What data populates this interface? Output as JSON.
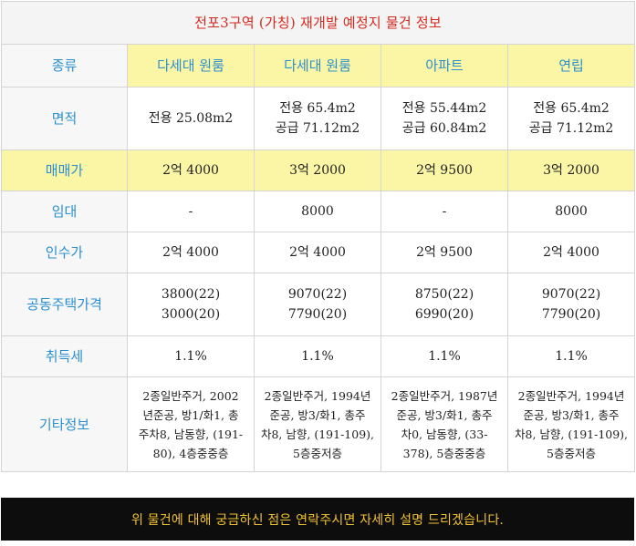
{
  "title": "전포3구역 (가칭) 재개발 예정지 물건 정보",
  "row_labels": {
    "type": "종류",
    "area": "면적",
    "price": "매매가",
    "lease": "임대",
    "acquisition": "인수가",
    "public_price": "공동주택가격",
    "tax": "취득세",
    "etc": "기타정보"
  },
  "properties": [
    {
      "type": "다세대 원룸",
      "area_1": "전용 25.08m2",
      "area_2": "",
      "price": "2억 4000",
      "lease": "-",
      "acquisition": "2억 4000",
      "public_price_1": "3800(22)",
      "public_price_2": "3000(20)",
      "tax": "1.1%",
      "etc_1": "2종일반주거, 2002",
      "etc_2": "년준공, 방1/화1, 총",
      "etc_3": "주차8, 남동향, (191-",
      "etc_4": "80), 4층중중층"
    },
    {
      "type": "다세대 원룸",
      "area_1": "전용 65.4m2",
      "area_2": "공급 71.12m2",
      "price": "3억 2000",
      "lease": "8000",
      "acquisition": "2억 4000",
      "public_price_1": "9070(22)",
      "public_price_2": "7790(20)",
      "tax": "1.1%",
      "etc_1": "2종일반주거, 1994년",
      "etc_2": "준공, 방3/화1, 총주",
      "etc_3": "차8, 남향, (191-109),",
      "etc_4": "5층중저층"
    },
    {
      "type": "아파트",
      "area_1": "전용 55.44m2",
      "area_2": "공급 60.84m2",
      "price": "2억 9500",
      "lease": "-",
      "acquisition": "2억 9500",
      "public_price_1": "8750(22)",
      "public_price_2": "6990(20)",
      "tax": "1.1%",
      "etc_1": "2종일반주거, 1987년",
      "etc_2": "준공, 방3/화1, 총주",
      "etc_3": "차0, 남동향, (33-",
      "etc_4": "378), 5층중중층"
    },
    {
      "type": "연립",
      "area_1": "전용 65.4m2",
      "area_2": "공급 71.12m2",
      "price": "3억 2000",
      "lease": "8000",
      "acquisition": "2억 4000",
      "public_price_1": "9070(22)",
      "public_price_2": "7790(20)",
      "tax": "1.1%",
      "etc_1": "2종일반주거, 1994년",
      "etc_2": "준공, 방3/화1, 총주",
      "etc_3": "차8, 남향, (191-109),",
      "etc_4": "5층중저층"
    }
  ],
  "footer_notice": "위 물건에 대해 궁금하신 점은 연락주시면 자세히 설명 드리겠습니다."
}
